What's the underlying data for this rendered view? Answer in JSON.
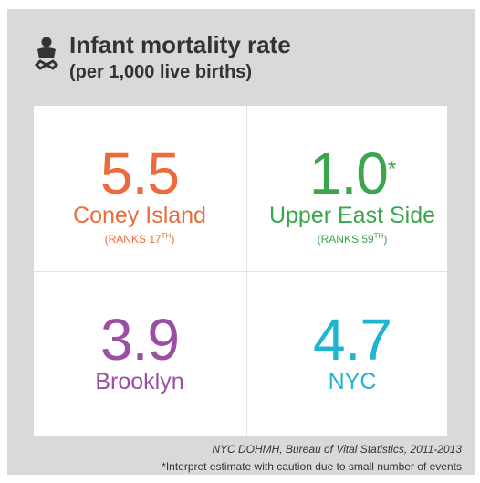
{
  "header": {
    "title": "Infant mortality rate",
    "subtitle": "(per 1,000 live births)"
  },
  "cells": [
    {
      "value": "5.5",
      "name": "Coney Island",
      "rank": "(RANKS 17",
      "rank_sup": "TH",
      "rank_close": ")"
    },
    {
      "value": "1.0",
      "asterisk": "*",
      "name": "Upper East Side",
      "rank": "(RANKS 59",
      "rank_sup": "TH",
      "rank_close": ")"
    },
    {
      "value": "3.9",
      "name": "Brooklyn"
    },
    {
      "value": "4.7",
      "name": "NYC"
    }
  ],
  "footer": {
    "source": "NYC DOHMH, Bureau of Vital Statistics, 2011-2013",
    "note": "*Interpret estimate with caution due to small number of events"
  }
}
